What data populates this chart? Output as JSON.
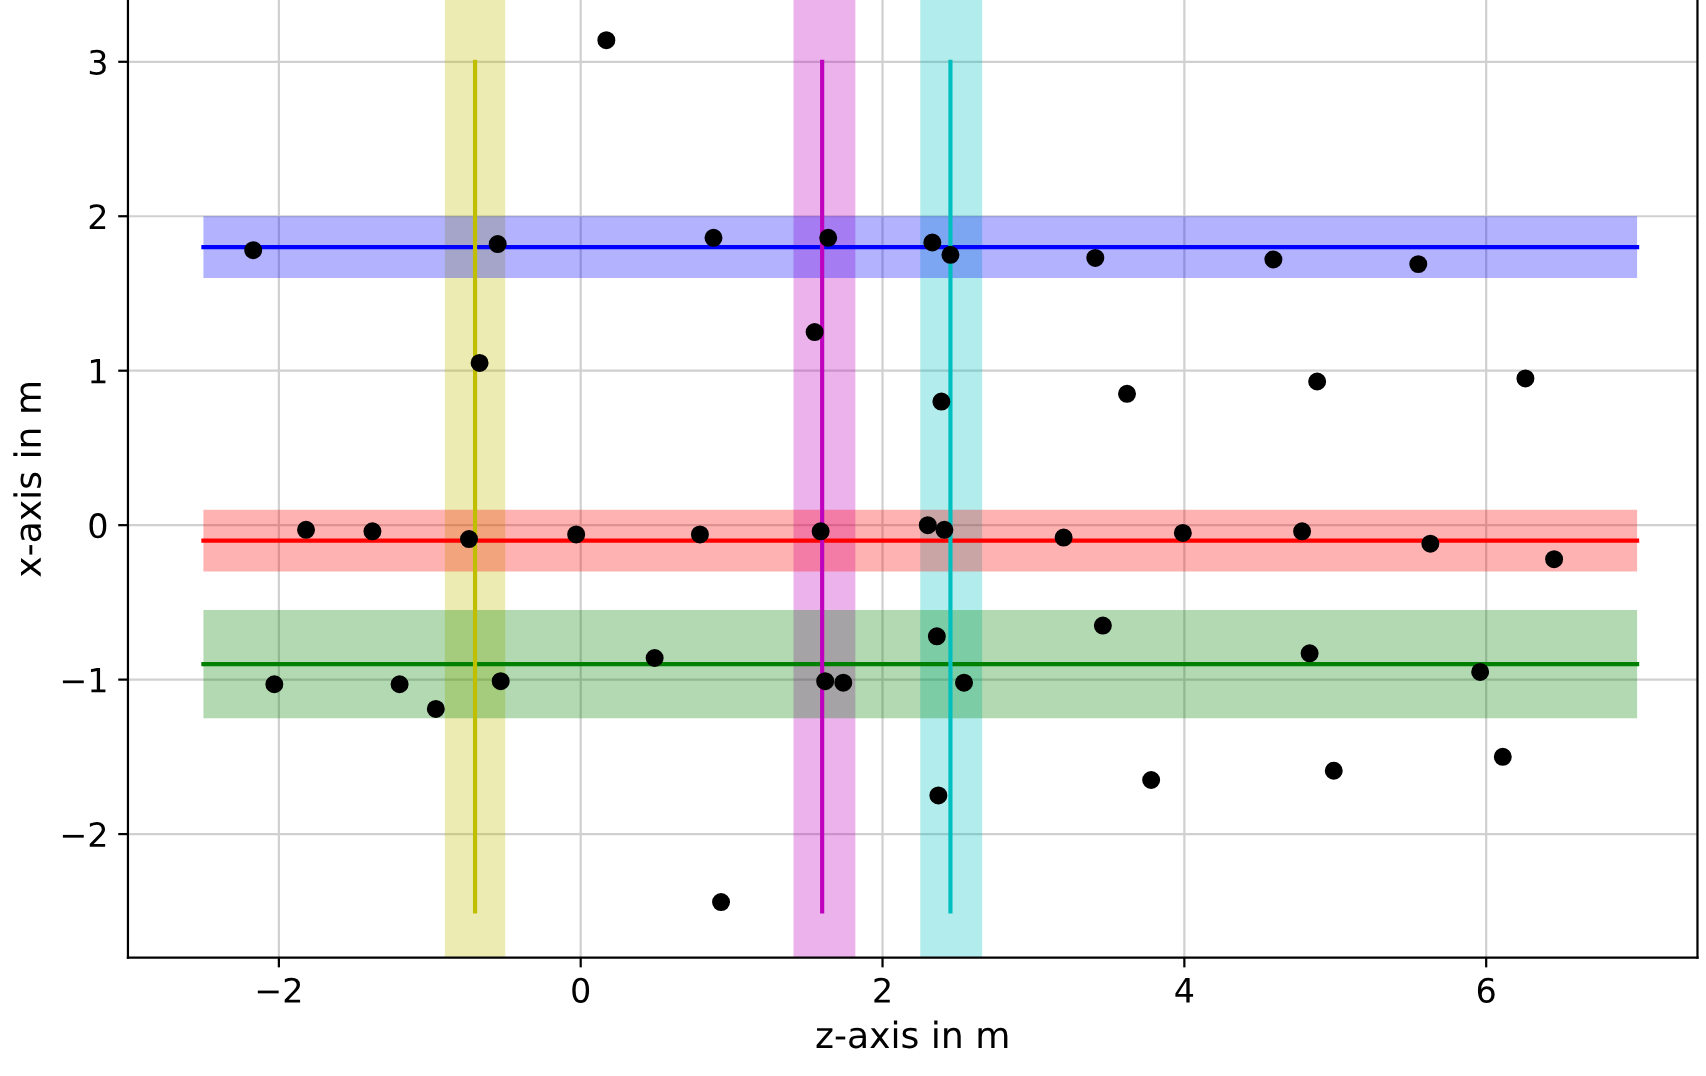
{
  "chart_data": {
    "type": "scatter",
    "xlabel": "z-axis in m",
    "ylabel": "x-axis in m",
    "xlim": [
      -3,
      7.4
    ],
    "ylim": [
      -2.8,
      3.4
    ],
    "xticks": [
      {
        "value": -2,
        "label": "−2"
      },
      0,
      2,
      4,
      6
    ],
    "yticks": [
      {
        "value": -2,
        "label": "−2"
      },
      {
        "value": -1,
        "label": "−1"
      },
      0,
      1,
      2,
      3
    ],
    "grid": true,
    "series": [
      {
        "type": "line",
        "marker": "none",
        "color": "#0000ff",
        "x": [
          -2.5,
          7
        ],
        "values": [
          1.8,
          1.8
        ],
        "lower": [
          1.6,
          1.6
        ],
        "upper": [
          2.0,
          2.0
        ]
      },
      {
        "type": "line",
        "marker": "none",
        "color": "#ff0000",
        "x": [
          -2.5,
          7
        ],
        "values": [
          -0.1,
          -0.1
        ],
        "lower": [
          -0.3,
          -0.3
        ],
        "upper": [
          0.1,
          0.1
        ]
      },
      {
        "type": "line",
        "marker": "none",
        "color": "#008000",
        "x": [
          -2.5,
          7
        ],
        "values": [
          -0.9,
          -0.9
        ],
        "lower": [
          -1.25,
          -1.25
        ],
        "upper": [
          -0.55,
          -0.55
        ]
      },
      {
        "type": "line",
        "marker": "none",
        "color": "#bfbf00",
        "x": [
          -0.7,
          -0.7
        ],
        "values": [
          -2.5,
          3
        ]
      },
      {
        "type": "line",
        "marker": "none",
        "color": "#bf00bf",
        "x": [
          1.6,
          1.6
        ],
        "values": [
          -2.5,
          3
        ]
      },
      {
        "type": "line",
        "marker": "none",
        "color": "#00bfbf",
        "x": [
          2.45,
          2.45
        ],
        "values": [
          -2.5,
          3
        ]
      },
      {
        "color": "#000000",
        "marker": "circle",
        "x": [
          -2.17,
          0.17,
          0.88,
          -0.55,
          -0.67,
          1.64,
          1.55,
          2.33,
          2.45,
          2.39,
          3.41,
          3.62,
          4.59,
          4.88,
          5.55,
          6.26,
          -1.82,
          -1.38,
          -0.74,
          -0.03,
          0.79,
          1.59,
          2.3,
          2.41,
          3.2,
          3.99,
          4.78,
          5.63,
          6.45,
          -2.03,
          -1.2,
          -0.96,
          -0.53,
          0.49,
          1.62,
          1.74,
          2.36,
          2.54,
          3.46,
          4.83,
          5.96,
          0.93,
          2.37,
          3.78,
          4.99,
          6.11
        ],
        "values": [
          1.78,
          3.14,
          1.86,
          1.82,
          1.05,
          1.86,
          1.25,
          1.83,
          1.75,
          0.8,
          1.73,
          0.85,
          1.72,
          0.93,
          1.69,
          0.95,
          -0.03,
          -0.04,
          -0.09,
          -0.06,
          -0.06,
          -0.04,
          0.0,
          -0.03,
          -0.08,
          -0.05,
          -0.04,
          -0.12,
          -0.22,
          -1.03,
          -1.03,
          -1.19,
          -1.01,
          -0.86,
          -1.01,
          -1.02,
          -0.72,
          -1.02,
          -0.65,
          -0.83,
          -0.95,
          -2.44,
          -1.75,
          -1.65,
          -1.59,
          -1.5
        ]
      }
    ],
    "bands": [
      {
        "axis": "x",
        "from": -0.9,
        "to": -0.5,
        "color": "#bfbf00"
      },
      {
        "axis": "x",
        "from": 1.41,
        "to": 1.82,
        "color": "#bf00bf"
      },
      {
        "axis": "x",
        "from": 2.25,
        "to": 2.66,
        "color": "#00bfbf"
      }
    ]
  }
}
